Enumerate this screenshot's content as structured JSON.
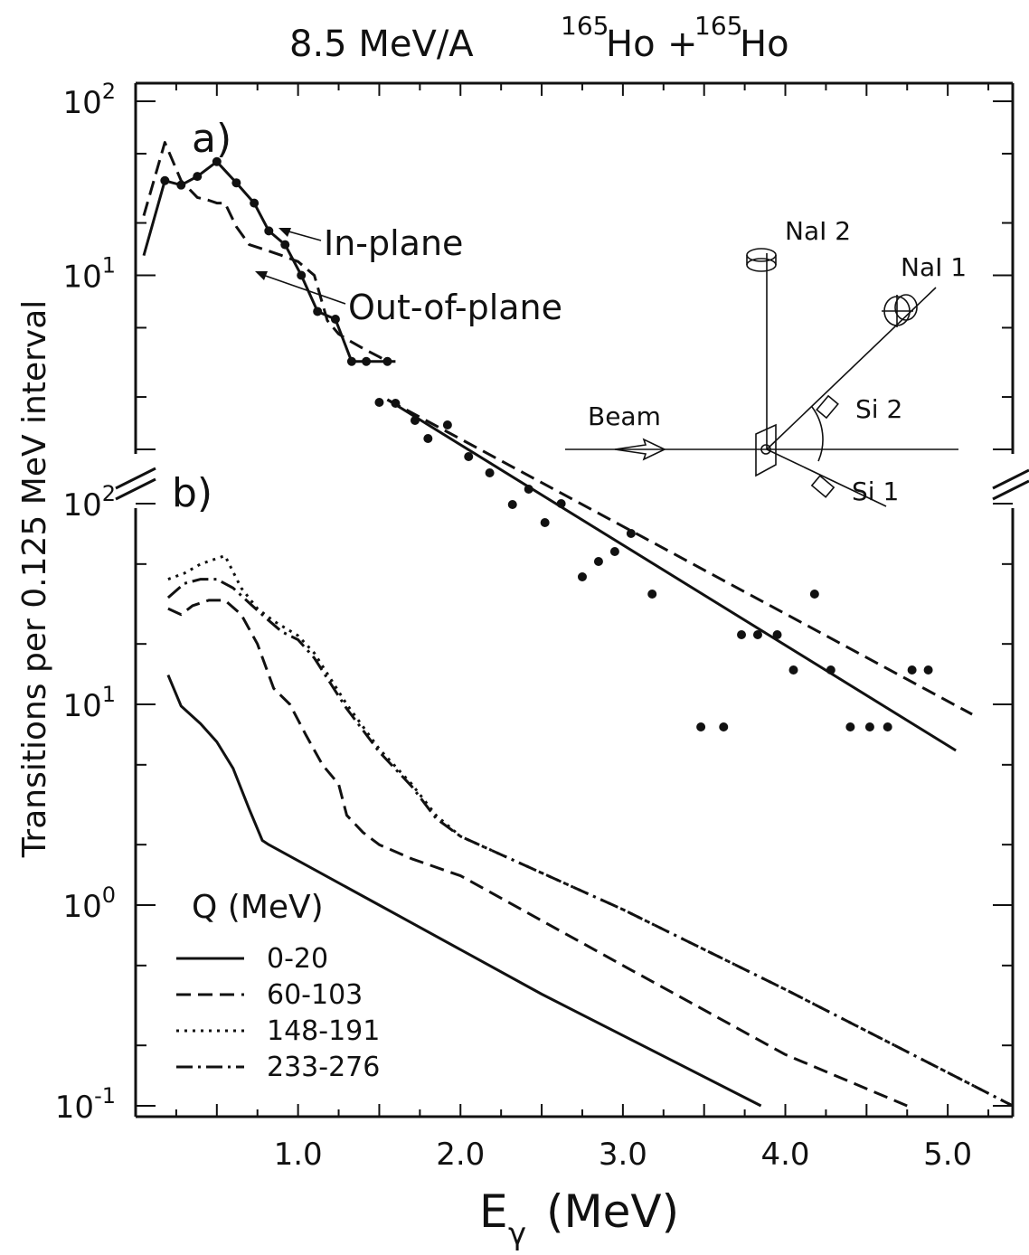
{
  "figure": {
    "title": "8.5 MeV/A",
    "reaction": {
      "mass1": "165",
      "el1": "Ho",
      "plus": "+",
      "mass2": "165",
      "el2": "Ho"
    },
    "ylabel": "Transitions per 0.125 MeV interval",
    "xlabel_main": "E",
    "xlabel_sub": "γ",
    "xlabel_unit": "(MeV)"
  },
  "chart_data": [
    {
      "panel": "a)",
      "type": "line",
      "yscale": "log",
      "ylim": [
        1,
        100
      ],
      "xlim": [
        0,
        5.4
      ],
      "x_ticks": [
        "1.0",
        "2.0",
        "3.0",
        "4.0",
        "5.0"
      ],
      "y_ticks": [
        {
          "base": "10",
          "exp": "2",
          "value": 100
        },
        {
          "base": "10",
          "exp": "1",
          "value": 10
        }
      ],
      "annotations": [
        "In-plane",
        "Out-of-plane"
      ],
      "series": [
        {
          "name": "In-plane",
          "style": "solid-with-points",
          "x": [
            0.05,
            0.18,
            0.28,
            0.38,
            0.5,
            0.62,
            0.73,
            0.82,
            0.92,
            1.02,
            1.12,
            1.23,
            1.33,
            1.42,
            1.55,
            1.6
          ],
          "y": [
            13,
            35,
            33,
            37,
            45,
            34,
            26,
            18,
            15,
            10,
            6.2,
            5.6,
            3.2,
            3.2,
            3.2,
            3.2
          ]
        },
        {
          "name": "Out-of-plane",
          "style": "dashed",
          "x": [
            0.05,
            0.18,
            0.28,
            0.38,
            0.45,
            0.5,
            0.55,
            0.62,
            0.7,
            0.8,
            0.9,
            1.0,
            1.1,
            1.18,
            1.25,
            1.3,
            1.4,
            1.5,
            1.55
          ],
          "y": [
            22,
            58,
            35,
            28,
            27,
            26,
            26,
            19,
            15,
            14,
            13,
            12,
            10,
            5.5,
            4.6,
            4.3,
            3.8,
            3.4,
            3.2
          ]
        },
        {
          "name": "points",
          "style": "points",
          "x": [
            1.67,
            1.78,
            1.9,
            2.0,
            2.1,
            2.22,
            2.35,
            2.45,
            2.55,
            2.62,
            2.72,
            2.85,
            2.95,
            3.07,
            3.17,
            3.27,
            3.37,
            3.48,
            3.58,
            3.67,
            3.77,
            3.87,
            3.97,
            4.08,
            4.18,
            4.28,
            4.38,
            4.48,
            4.58,
            4.68,
            4.78
          ]
        }
      ]
    },
    {
      "panel": "b)",
      "type": "line",
      "yscale": "log",
      "ylim": [
        0.1,
        100
      ],
      "xlim": [
        0,
        5.4
      ],
      "x_ticks": [
        "1.0",
        "2.0",
        "3.0",
        "4.0",
        "5.0"
      ],
      "y_ticks": [
        {
          "base": "10",
          "exp": "2",
          "value": 100
        },
        {
          "base": "10",
          "exp": "1",
          "value": 10
        },
        {
          "base": "10",
          "exp": "0",
          "value": 1
        },
        {
          "base": "10",
          "exp": "-1",
          "value": 0.1
        }
      ],
      "legend_title": "Q (MeV)",
      "legend_position": "lower-left",
      "series": [
        {
          "name": "0-20",
          "style": "solid",
          "x": [
            0.2,
            0.28,
            0.4,
            0.5,
            0.6,
            0.7,
            0.78,
            0.82,
            1.5,
            2.5,
            3.85
          ],
          "y": [
            14,
            9.8,
            8,
            6.5,
            4.8,
            3,
            2.1,
            2.0,
            1.0,
            0.36,
            0.1
          ]
        },
        {
          "name": "60-103",
          "style": "dashed",
          "x": [
            0.2,
            0.28,
            0.35,
            0.45,
            0.55,
            0.65,
            0.75,
            0.85,
            0.95,
            1.05,
            1.15,
            1.25,
            1.3,
            1.4,
            1.5,
            1.7,
            2.0,
            3.0,
            4.0,
            4.75
          ],
          "y": [
            30,
            28,
            31,
            33,
            33,
            28,
            20,
            12,
            10,
            7,
            5,
            4,
            2.8,
            2.3,
            2.0,
            1.7,
            1.4,
            0.5,
            0.18,
            0.1
          ]
        },
        {
          "name": "148-191",
          "style": "dotted",
          "x": [
            0.2,
            0.3,
            0.4,
            0.55,
            0.65,
            0.75,
            0.85,
            1.0,
            1.1,
            1.3,
            1.5,
            1.7,
            1.85,
            2.0,
            3.0,
            4.0,
            5.4
          ],
          "y": [
            42,
            45,
            50,
            55,
            38,
            30,
            26,
            22,
            18,
            10,
            6,
            4,
            2.8,
            2.2,
            0.95,
            0.38,
            0.1
          ]
        },
        {
          "name": "233-276",
          "style": "dash-dot",
          "x": [
            0.2,
            0.3,
            0.4,
            0.5,
            0.6,
            0.7,
            0.8,
            0.9,
            1.0,
            1.1,
            1.3,
            1.5,
            1.7,
            1.85,
            2.0,
            3.0,
            4.0,
            5.4
          ],
          "y": [
            34,
            40,
            42,
            42,
            38,
            32,
            27,
            23,
            21,
            17,
            9.5,
            5.8,
            3.9,
            2.7,
            2.2,
            0.95,
            0.38,
            0.1
          ]
        }
      ]
    }
  ],
  "inset": {
    "labels": {
      "nai2": "NaI 2",
      "nai1": "NaI 1",
      "si2": "Si 2",
      "si1": "Si 1",
      "beam": "Beam"
    }
  }
}
